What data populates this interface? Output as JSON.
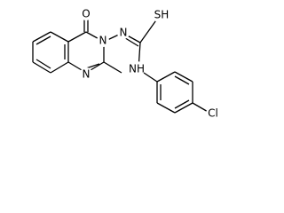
{
  "atoms": {
    "oxygen": "O",
    "ring_n3": "N",
    "ring_n1": "N",
    "imine_n": "N",
    "thiol": "SH",
    "amine": "NH",
    "chlorine": "Cl"
  }
}
